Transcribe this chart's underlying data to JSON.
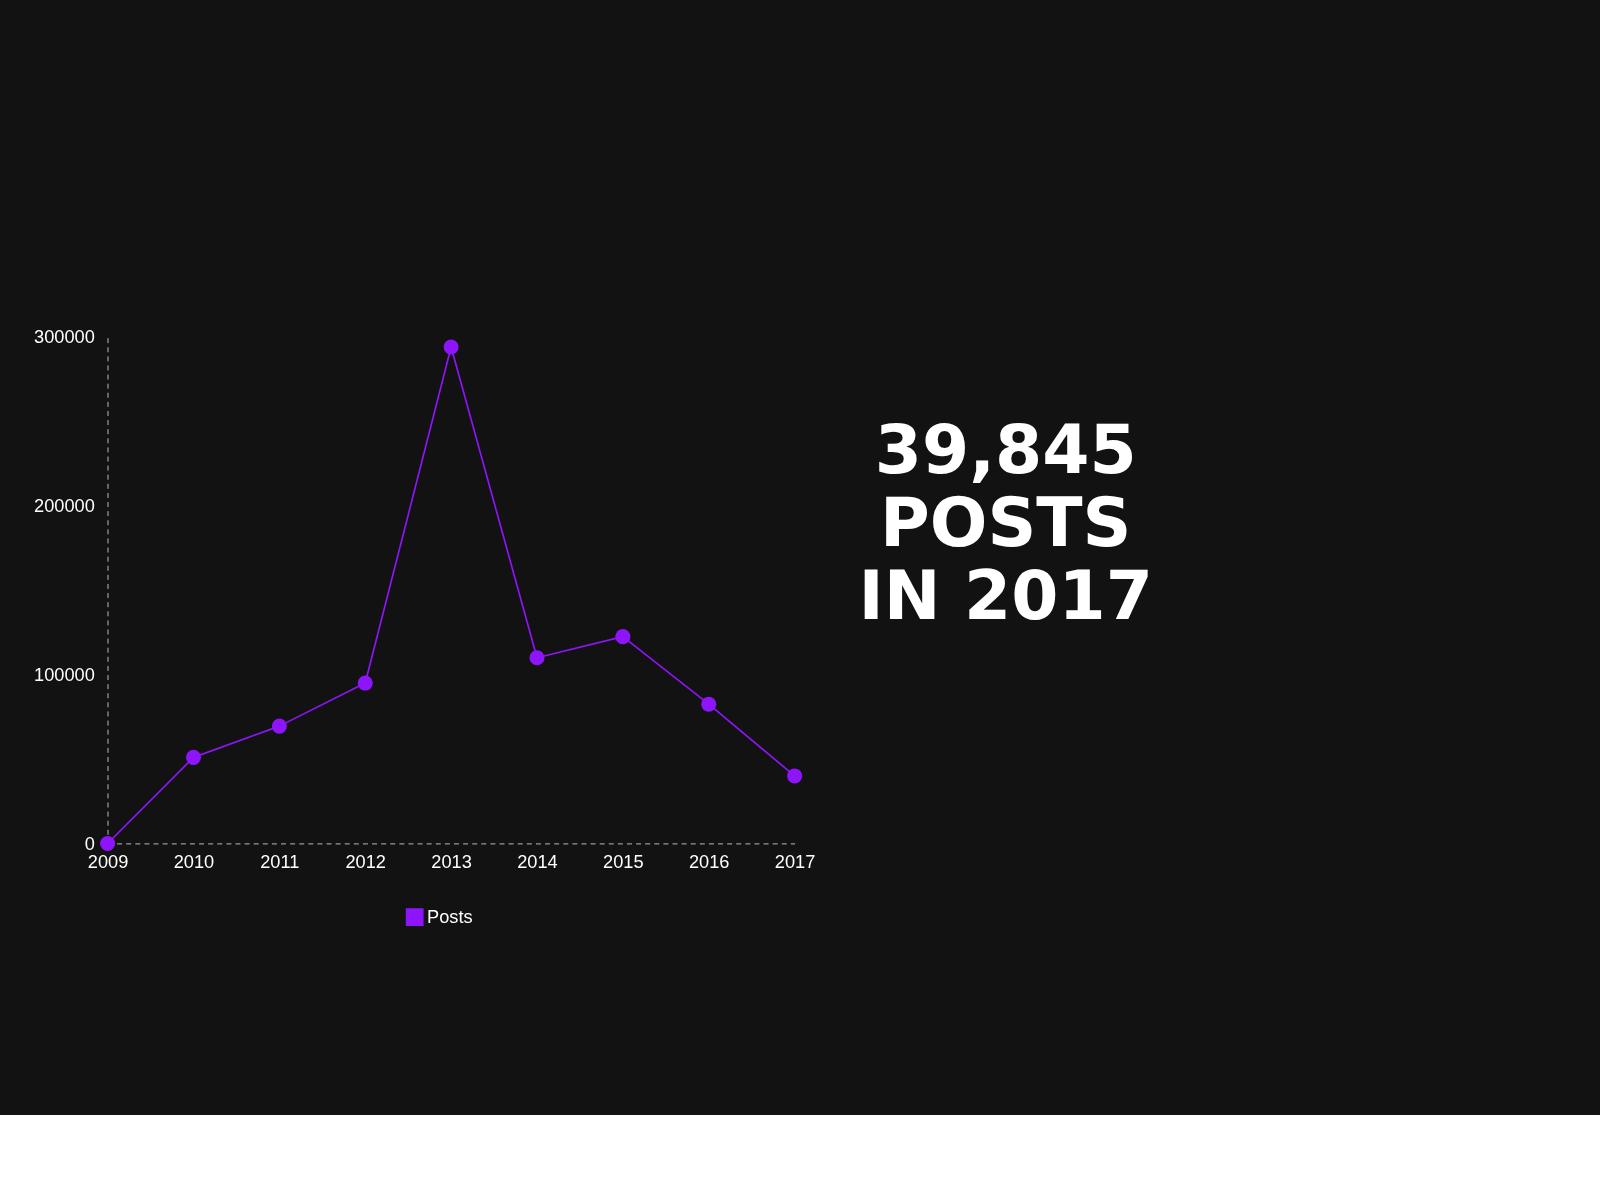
{
  "chart_data": {
    "type": "line",
    "categories": [
      "2009",
      "2010",
      "2011",
      "2012",
      "2013",
      "2014",
      "2015",
      "2016",
      "2017"
    ],
    "series": [
      {
        "name": "Posts",
        "color": "#8e14fa",
        "values": [
          0,
          51000,
          69500,
          95000,
          294000,
          110000,
          122500,
          82500,
          40000
        ]
      }
    ],
    "ylim": [
      0,
      300000
    ],
    "yticks": [
      0,
      100000,
      200000,
      300000
    ],
    "grid": false,
    "legend": "bottom",
    "marker": "circle",
    "line_style": "solid",
    "annotations": [
      "39,845\nPOSTS\nIN 2017"
    ]
  }
}
